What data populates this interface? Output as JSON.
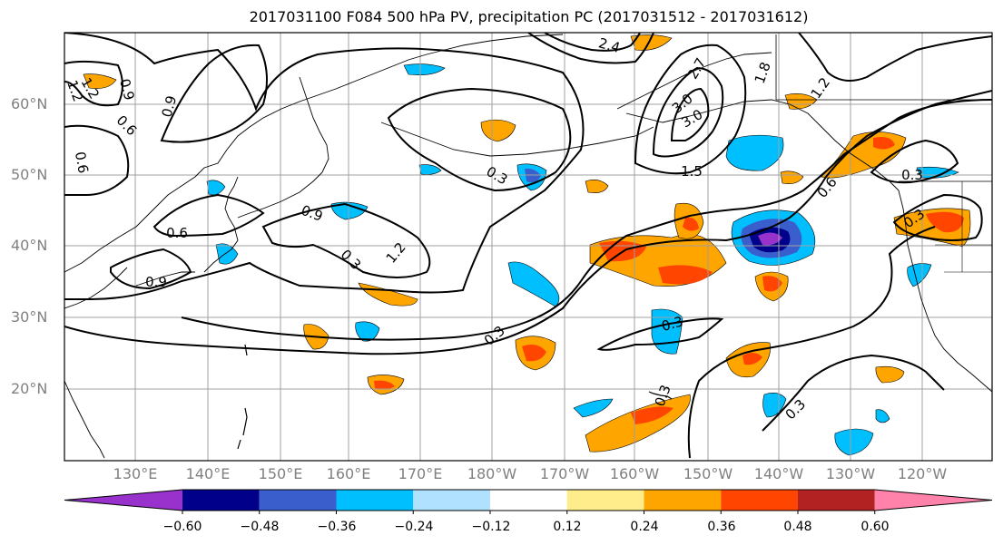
{
  "title": "2017031100 F084 500 hPa PV, precipitation PC (2017031512 - 2017031612)",
  "latitude_labels": [
    "60°N",
    "50°N",
    "40°N",
    "30°N",
    "20°N"
  ],
  "longitude_labels": [
    "130°E",
    "140°E",
    "150°E",
    "160°E",
    "170°E",
    "180°W",
    "170°W",
    "160°W",
    "150°W",
    "140°W",
    "130°W",
    "120°W"
  ],
  "contour_labels": [
    "0.9",
    "0.6",
    "1.2",
    "0.9",
    "0.6",
    "0.6",
    "0.9",
    "1.2",
    "0.3",
    "0.3",
    "0.3",
    "0.3",
    "0.3",
    "2.4",
    "2.7",
    "3.0",
    "1.8",
    "1.5",
    "1.2",
    "0.6",
    "0.3",
    "0.3",
    "0.3",
    "1.2",
    "0.9",
    "3.0"
  ],
  "colorbar": {
    "ticks": [
      "−0.60",
      "−0.48",
      "−0.36",
      "−0.24",
      "−0.12",
      "0.12",
      "0.24",
      "0.36",
      "0.48",
      "0.60"
    ],
    "colors": [
      "#9932cc",
      "#00008b",
      "#3a5fcd",
      "#00bfff",
      "#b0e2ff",
      "#ffffff",
      "#ffec8b",
      "#ffa500",
      "#ff4500",
      "#b22222",
      "#ff82ab"
    ]
  }
}
